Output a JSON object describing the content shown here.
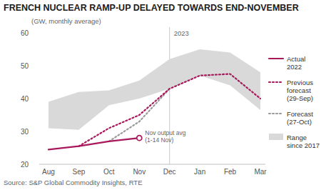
{
  "chart_data": {
    "type": "line",
    "title": "FRENCH NUCLEAR RAMP-UP DELAYED TOWARDS END-NOVEMBER",
    "subtitle": "(GW, monthly average)",
    "source": "Source: S&P Global Commodity Insights, RTE",
    "annotations": [
      "2023",
      "Nov output avg (1-14 Nov)"
    ],
    "categories": [
      "Aug",
      "Sep",
      "Oct",
      "Nov",
      "Dec",
      "Jan",
      "Feb",
      "Mar"
    ],
    "ylim": [
      20,
      60
    ],
    "yticks": [
      20,
      30,
      40,
      50,
      60
    ],
    "grid": false,
    "legend": "right",
    "series": [
      {
        "name": "Actual 2022",
        "color": "#a8195c",
        "line_style": "solid",
        "marker": "open-circle",
        "values": [
          24.5,
          25.5,
          27,
          28,
          null,
          null,
          null,
          null
        ]
      },
      {
        "name": "Previous forecast (29-Sep)",
        "color": "#a8195c",
        "line_style": "dotted",
        "values": [
          null,
          25.5,
          31,
          35,
          43,
          47,
          47.5,
          40
        ]
      },
      {
        "name": "Forecast (27-Oct)",
        "color": "#9b9b9b",
        "line_style": "dotted",
        "values": [
          null,
          null,
          27,
          33,
          43,
          null,
          null,
          null
        ]
      },
      {
        "name": "Range since 2017",
        "type": "area",
        "color": "#d9d9d9",
        "values": [
          39,
          42,
          42.5,
          45.5,
          52,
          55,
          54,
          48
        ],
        "low": [
          31,
          30.5,
          38,
          40,
          43,
          47,
          44,
          36.5
        ]
      }
    ]
  }
}
